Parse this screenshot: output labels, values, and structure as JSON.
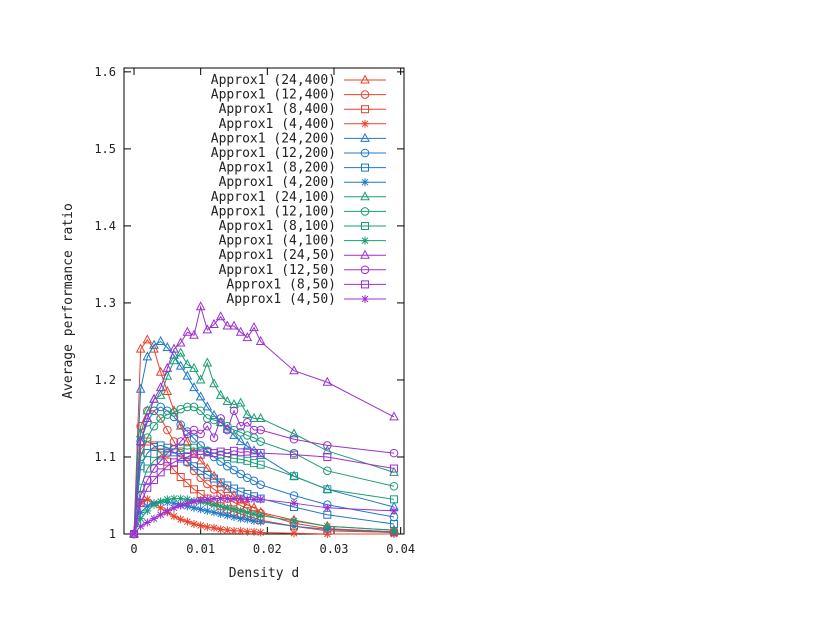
{
  "chart_data": {
    "type": "line",
    "title": "",
    "xlabel": "Density d",
    "ylabel": "Average performance ratio",
    "xlim": [
      -0.0015,
      0.0405
    ],
    "ylim": [
      1.0,
      1.605
    ],
    "xticks": [
      0,
      0.01,
      0.02,
      0.03,
      0.04
    ],
    "xtick_labels": [
      "0",
      "0.01",
      "0.02",
      "0.03",
      "0.04"
    ],
    "yticks": [
      1,
      1.1,
      1.2,
      1.3,
      1.4,
      1.5,
      1.6
    ],
    "ytick_labels": [
      "1",
      "1.1",
      "1.2",
      "1.3",
      "1.4",
      "1.5",
      "1.6"
    ],
    "grid": false,
    "legend_position": "top-right",
    "x": [
      0,
      0.001,
      0.002,
      0.003,
      0.004,
      0.005,
      0.006,
      0.007,
      0.008,
      0.009,
      0.01,
      0.011,
      0.012,
      0.013,
      0.014,
      0.015,
      0.016,
      0.017,
      0.018,
      0.019,
      0.024,
      0.029,
      0.039
    ],
    "series": [
      {
        "name": "Approx1 (24,400)",
        "color": "#e8432a",
        "marker": "triangle",
        "values": [
          1.0,
          1.24,
          1.252,
          1.24,
          1.21,
          1.185,
          1.16,
          1.14,
          1.12,
          1.105,
          1.095,
          1.085,
          1.075,
          1.065,
          1.058,
          1.05,
          1.044,
          1.038,
          1.034,
          1.028,
          1.018,
          1.01,
          1.005
        ]
      },
      {
        "name": "Approx1 (12,400)",
        "color": "#e8432a",
        "marker": "circle",
        "values": [
          1.0,
          1.14,
          1.16,
          1.16,
          1.15,
          1.135,
          1.12,
          1.105,
          1.093,
          1.082,
          1.073,
          1.065,
          1.058,
          1.052,
          1.046,
          1.041,
          1.037,
          1.033,
          1.03,
          1.027,
          1.014,
          1.007,
          1.003
        ]
      },
      {
        "name": "Approx1 (8,400)",
        "color": "#e8432a",
        "marker": "square",
        "values": [
          1.0,
          1.11,
          1.12,
          1.115,
          1.105,
          1.094,
          1.083,
          1.074,
          1.066,
          1.058,
          1.052,
          1.046,
          1.041,
          1.036,
          1.032,
          1.029,
          1.026,
          1.023,
          1.021,
          1.018,
          1.01,
          1.004,
          1.002
        ]
      },
      {
        "name": "Approx1 (4,400)",
        "color": "#e8432a",
        "marker": "star",
        "values": [
          1.0,
          1.04,
          1.045,
          1.04,
          1.034,
          1.028,
          1.023,
          1.019,
          1.016,
          1.013,
          1.011,
          1.009,
          1.008,
          1.006,
          1.005,
          1.004,
          1.004,
          1.003,
          1.003,
          1.002,
          1.001,
          1.0,
          1.0
        ]
      },
      {
        "name": "Approx1 (24,200)",
        "color": "#1f78c8",
        "marker": "triangle",
        "values": [
          1.0,
          1.188,
          1.23,
          1.245,
          1.25,
          1.242,
          1.232,
          1.218,
          1.205,
          1.19,
          1.178,
          1.165,
          1.154,
          1.145,
          1.136,
          1.128,
          1.12,
          1.114,
          1.108,
          1.102,
          1.075,
          1.058,
          1.035
        ]
      },
      {
        "name": "Approx1 (12,200)",
        "color": "#1f78c8",
        "marker": "circle",
        "values": [
          1.0,
          1.12,
          1.145,
          1.16,
          1.165,
          1.16,
          1.152,
          1.142,
          1.133,
          1.124,
          1.115,
          1.108,
          1.1,
          1.094,
          1.088,
          1.083,
          1.078,
          1.073,
          1.069,
          1.064,
          1.05,
          1.038,
          1.022
        ]
      },
      {
        "name": "Approx1 (8,200)",
        "color": "#1f78c8",
        "marker": "square",
        "values": [
          1.0,
          1.088,
          1.105,
          1.113,
          1.115,
          1.112,
          1.106,
          1.1,
          1.094,
          1.088,
          1.082,
          1.077,
          1.072,
          1.067,
          1.063,
          1.059,
          1.055,
          1.052,
          1.049,
          1.046,
          1.035,
          1.025,
          1.013
        ]
      },
      {
        "name": "Approx1 (4,200)",
        "color": "#1f78c8",
        "marker": "star",
        "values": [
          1.0,
          1.028,
          1.036,
          1.04,
          1.042,
          1.041,
          1.04,
          1.038,
          1.036,
          1.034,
          1.032,
          1.03,
          1.028,
          1.026,
          1.024,
          1.022,
          1.02,
          1.019,
          1.017,
          1.016,
          1.01,
          1.006,
          1.002
        ]
      },
      {
        "name": "Approx1 (24,100)",
        "color": "#1a9e77",
        "marker": "triangle",
        "values": [
          1.0,
          1.13,
          1.16,
          1.175,
          1.18,
          1.205,
          1.225,
          1.235,
          1.22,
          1.215,
          1.2,
          1.222,
          1.195,
          1.18,
          1.172,
          1.168,
          1.17,
          1.155,
          1.15,
          1.15,
          1.13,
          1.108,
          1.08
        ]
      },
      {
        "name": "Approx1 (12,100)",
        "color": "#1a9e77",
        "marker": "circle",
        "values": [
          1.0,
          1.1,
          1.125,
          1.14,
          1.15,
          1.155,
          1.158,
          1.162,
          1.165,
          1.165,
          1.16,
          1.15,
          1.148,
          1.145,
          1.14,
          1.135,
          1.132,
          1.128,
          1.125,
          1.12,
          1.105,
          1.082,
          1.062
        ]
      },
      {
        "name": "Approx1 (8,100)",
        "color": "#1a9e77",
        "marker": "square",
        "values": [
          1.0,
          1.06,
          1.085,
          1.095,
          1.102,
          1.107,
          1.11,
          1.112,
          1.11,
          1.112,
          1.108,
          1.107,
          1.105,
          1.103,
          1.1,
          1.098,
          1.097,
          1.095,
          1.092,
          1.09,
          1.075,
          1.058,
          1.045
        ]
      },
      {
        "name": "Approx1 (4,100)",
        "color": "#1a9e77",
        "marker": "star",
        "values": [
          1.0,
          1.02,
          1.03,
          1.038,
          1.042,
          1.045,
          1.046,
          1.046,
          1.045,
          1.043,
          1.042,
          1.04,
          1.038,
          1.036,
          1.034,
          1.032,
          1.03,
          1.028,
          1.026,
          1.024,
          1.017,
          1.01,
          1.005
        ]
      },
      {
        "name": "Approx1 (24,50)",
        "color": "#9b30d0",
        "marker": "triangle",
        "values": [
          1.0,
          1.12,
          1.15,
          1.175,
          1.19,
          1.215,
          1.24,
          1.248,
          1.262,
          1.258,
          1.295,
          1.265,
          1.272,
          1.282,
          1.27,
          1.27,
          1.262,
          1.255,
          1.268,
          1.25,
          1.212,
          1.197,
          1.152
        ]
      },
      {
        "name": "Approx1 (12,50)",
        "color": "#9b30d0",
        "marker": "circle",
        "values": [
          1.0,
          1.05,
          1.07,
          1.085,
          1.095,
          1.105,
          1.11,
          1.12,
          1.13,
          1.135,
          1.13,
          1.14,
          1.125,
          1.15,
          1.135,
          1.16,
          1.14,
          1.145,
          1.135,
          1.135,
          1.123,
          1.115,
          1.105
        ]
      },
      {
        "name": "Approx1 (8,50)",
        "color": "#9b30d0",
        "marker": "square",
        "values": [
          1.0,
          1.04,
          1.06,
          1.07,
          1.08,
          1.088,
          1.093,
          1.098,
          1.1,
          1.104,
          1.103,
          1.106,
          1.105,
          1.107,
          1.105,
          1.108,
          1.106,
          1.107,
          1.105,
          1.105,
          1.103,
          1.1,
          1.085
        ]
      },
      {
        "name": "Approx1 (4,50)",
        "color": "#9b30d0",
        "marker": "star",
        "values": [
          1.0,
          1.01,
          1.015,
          1.02,
          1.025,
          1.03,
          1.034,
          1.037,
          1.04,
          1.042,
          1.044,
          1.045,
          1.046,
          1.046,
          1.046,
          1.046,
          1.046,
          1.045,
          1.045,
          1.045,
          1.04,
          1.034,
          1.03
        ]
      }
    ]
  }
}
